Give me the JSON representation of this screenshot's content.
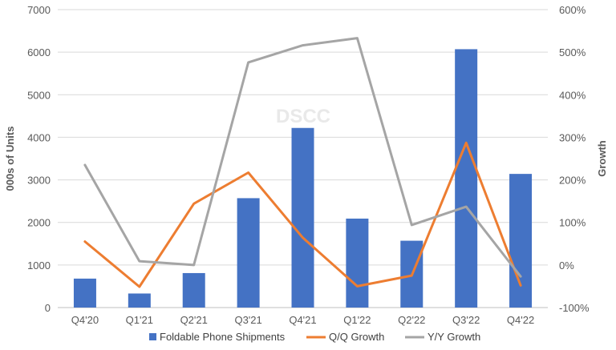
{
  "chart_data": {
    "type": "bar",
    "categories": [
      "Q4'20",
      "Q1'21",
      "Q2'21",
      "Q3'21",
      "Q4'21",
      "Q1'22",
      "Q2'22",
      "Q3'22",
      "Q4'22"
    ],
    "series": [
      {
        "name": "Foldable Phone Shipments",
        "type": "bar",
        "axis": "left",
        "color": "#4472C4",
        "values": [
          680,
          330,
          810,
          2570,
          4220,
          2090,
          1570,
          6070,
          3140
        ]
      },
      {
        "name": "Q/Q Growth",
        "type": "line",
        "axis": "right",
        "color": "#ED7D31",
        "values": [
          55,
          -51,
          144,
          217,
          64,
          -50,
          -25,
          287,
          -48
        ]
      },
      {
        "name": "Y/Y Growth",
        "type": "line",
        "axis": "right",
        "color": "#A5A5A5",
        "values": [
          235,
          9,
          0,
          476,
          516,
          533,
          94,
          137,
          -27
        ]
      }
    ],
    "ylabel": "000s of Units",
    "y2label": "Growth",
    "ylim": [
      0,
      7000
    ],
    "y2lim": [
      -100,
      600
    ],
    "yticks": [
      "0",
      "1000",
      "2000",
      "3000",
      "4000",
      "5000",
      "6000",
      "7000"
    ],
    "y2ticks": [
      "-100%",
      "0%",
      "100%",
      "200%",
      "300%",
      "400%",
      "500%",
      "600%"
    ],
    "grid": true,
    "legend": "bottom"
  },
  "watermark": "DSCC"
}
